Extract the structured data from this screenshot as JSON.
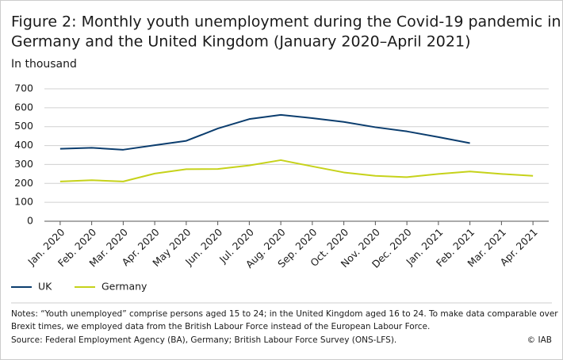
{
  "chart_data": {
    "type": "line",
    "title": [
      "Figure 2: Monthly youth unemployment during the Covid-19 pandemic in",
      "Germany and the United Kingdom (January 2020–April 2021)"
    ],
    "subtitle": "In thousand",
    "categories": [
      "Jan. 2020",
      "Feb. 2020",
      "Mar. 2020",
      "Apr. 2020",
      "May 2020",
      "Jun. 2020",
      "Jul. 2020",
      "Aug. 2020",
      "Sep. 2020",
      "Oct. 2020",
      "Nov. 2020",
      "Dec. 2020",
      "Jan. 2021",
      "Feb. 2021",
      "Mar. 2021",
      "Apr. 2021"
    ],
    "series": [
      {
        "name": "UK",
        "color": "#0b3d6e",
        "values": [
          383,
          388,
          378,
          402,
          425,
          490,
          540,
          562,
          545,
          525,
          497,
          475,
          445,
          413,
          null,
          null
        ]
      },
      {
        "name": "Germany",
        "color": "#c6d21a",
        "values": [
          210,
          217,
          210,
          252,
          275,
          276,
          295,
          323,
          290,
          258,
          240,
          233,
          250,
          263,
          250,
          240
        ]
      }
    ],
    "ylim": [
      0,
      700
    ],
    "yticks": [
      0,
      100,
      200,
      300,
      400,
      500,
      600,
      700
    ],
    "grid": true,
    "notes": [
      "Notes: “Youth unemployed” comprise persons aged 15 to 24; in the United Kingdom aged 16 to 24. To make data comparable over",
      "Brexit times, we employed data from the British Labour Force instead of the European Labour Force.",
      "Source: Federal Employment Agency (BA), Germany; British Labour Force Survey (ONS-LFS)."
    ],
    "copyright": "© IAB"
  }
}
